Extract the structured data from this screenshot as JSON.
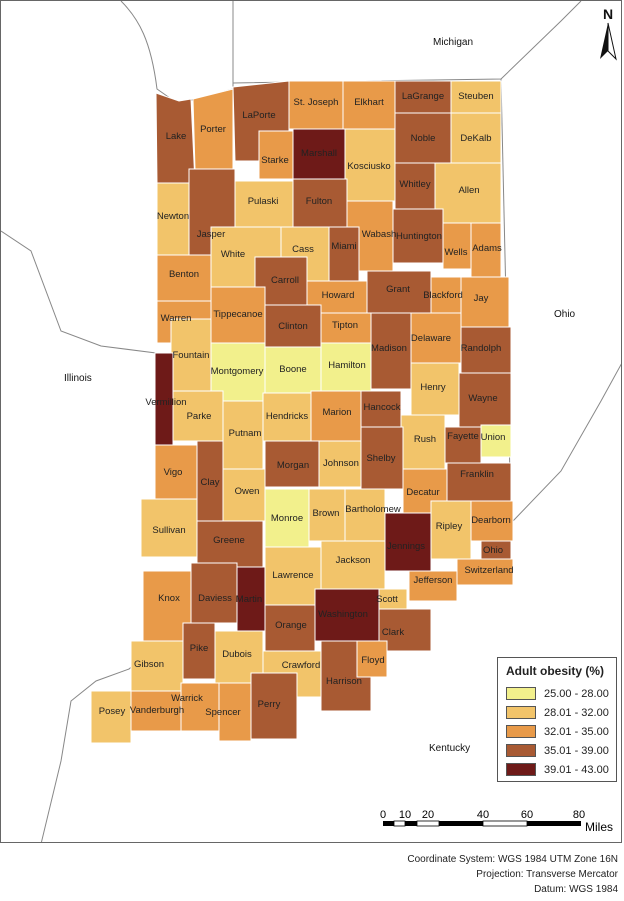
{
  "legend": {
    "title": "Adult obesity (%)",
    "classes": [
      {
        "label": "25.00 - 28.00",
        "color": "#f2f08c"
      },
      {
        "label": "28.01 - 32.00",
        "color": "#f2c46a"
      },
      {
        "label": "32.01 - 35.00",
        "color": "#e89a49"
      },
      {
        "label": "35.01 - 39.00",
        "color": "#a85a33"
      },
      {
        "label": "39.01 - 43.00",
        "color": "#6e1a18"
      }
    ]
  },
  "regions": {
    "michigan": "Michigan",
    "ohio": "Ohio",
    "illinois": "Illinois",
    "kentucky": "Kentucky"
  },
  "north_label": "N",
  "scale": {
    "ticks": [
      "0",
      "10",
      "20",
      "40",
      "60",
      "80"
    ],
    "unit": "Miles"
  },
  "credits": {
    "coordinate_system": "Coordinate System: WGS 1984 UTM Zone 16N",
    "projection": "Projection: Transverse Mercator",
    "datum": "Datum: WGS 1984"
  },
  "counties": [
    {
      "name": "Lake",
      "class": 3
    },
    {
      "name": "Porter",
      "class": 2
    },
    {
      "name": "LaPorte",
      "class": 3
    },
    {
      "name": "St. Joseph",
      "class": 2
    },
    {
      "name": "Elkhart",
      "class": 2
    },
    {
      "name": "LaGrange",
      "class": 3
    },
    {
      "name": "Steuben",
      "class": 1
    },
    {
      "name": "Noble",
      "class": 3
    },
    {
      "name": "DeKalb",
      "class": 1
    },
    {
      "name": "Starke",
      "class": 2
    },
    {
      "name": "Marshall",
      "class": 4
    },
    {
      "name": "Kosciusko",
      "class": 1
    },
    {
      "name": "Whitley",
      "class": 3
    },
    {
      "name": "Allen",
      "class": 1
    },
    {
      "name": "Newton",
      "class": 1
    },
    {
      "name": "Jasper",
      "class": 3
    },
    {
      "name": "Pulaski",
      "class": 1
    },
    {
      "name": "Fulton",
      "class": 3
    },
    {
      "name": "Huntington",
      "class": 3
    },
    {
      "name": "Wabash",
      "class": 2
    },
    {
      "name": "Miami",
      "class": 3
    },
    {
      "name": "Cass",
      "class": 1
    },
    {
      "name": "White",
      "class": 1
    },
    {
      "name": "Wells",
      "class": 2
    },
    {
      "name": "Adams",
      "class": 2
    },
    {
      "name": "Benton",
      "class": 2
    },
    {
      "name": "Carroll",
      "class": 3
    },
    {
      "name": "Howard",
      "class": 2
    },
    {
      "name": "Grant",
      "class": 3
    },
    {
      "name": "Blackford",
      "class": 2
    },
    {
      "name": "Jay",
      "class": 2
    },
    {
      "name": "Warren",
      "class": 2
    },
    {
      "name": "Tippecanoe",
      "class": 2
    },
    {
      "name": "Clinton",
      "class": 3
    },
    {
      "name": "Tipton",
      "class": 2
    },
    {
      "name": "Madison",
      "class": 3
    },
    {
      "name": "Delaware",
      "class": 2
    },
    {
      "name": "Randolph",
      "class": 3
    },
    {
      "name": "Fountain",
      "class": 1
    },
    {
      "name": "Montgomery",
      "class": 0
    },
    {
      "name": "Boone",
      "class": 0
    },
    {
      "name": "Hamilton",
      "class": 0
    },
    {
      "name": "Henry",
      "class": 1
    },
    {
      "name": "Wayne",
      "class": 3
    },
    {
      "name": "Vermillion",
      "class": 4
    },
    {
      "name": "Parke",
      "class": 1
    },
    {
      "name": "Putnam",
      "class": 1
    },
    {
      "name": "Hendricks",
      "class": 1
    },
    {
      "name": "Marion",
      "class": 2
    },
    {
      "name": "Hancock",
      "class": 3
    },
    {
      "name": "Rush",
      "class": 1
    },
    {
      "name": "Fayette",
      "class": 3
    },
    {
      "name": "Union",
      "class": 0
    },
    {
      "name": "Vigo",
      "class": 2
    },
    {
      "name": "Clay",
      "class": 3
    },
    {
      "name": "Owen",
      "class": 1
    },
    {
      "name": "Morgan",
      "class": 3
    },
    {
      "name": "Johnson",
      "class": 1
    },
    {
      "name": "Shelby",
      "class": 3
    },
    {
      "name": "Decatur",
      "class": 2
    },
    {
      "name": "Franklin",
      "class": 3
    },
    {
      "name": "Sullivan",
      "class": 1
    },
    {
      "name": "Greene",
      "class": 3
    },
    {
      "name": "Monroe",
      "class": 0
    },
    {
      "name": "Brown",
      "class": 1
    },
    {
      "name": "Bartholomew",
      "class": 1
    },
    {
      "name": "Jennings",
      "class": 4
    },
    {
      "name": "Ripley",
      "class": 1
    },
    {
      "name": "Dearborn",
      "class": 2
    },
    {
      "name": "Ohio",
      "class": 3
    },
    {
      "name": "Knox",
      "class": 2
    },
    {
      "name": "Daviess",
      "class": 3
    },
    {
      "name": "Martin",
      "class": 4
    },
    {
      "name": "Lawrence",
      "class": 1
    },
    {
      "name": "Jackson",
      "class": 1
    },
    {
      "name": "Jefferson",
      "class": 2
    },
    {
      "name": "Switzerland",
      "class": 2
    },
    {
      "name": "Scott",
      "class": 1
    },
    {
      "name": "Washington",
      "class": 4
    },
    {
      "name": "Orange",
      "class": 3
    },
    {
      "name": "Clark",
      "class": 3
    },
    {
      "name": "Gibson",
      "class": 1
    },
    {
      "name": "Pike",
      "class": 3
    },
    {
      "name": "Dubois",
      "class": 1
    },
    {
      "name": "Crawford",
      "class": 1
    },
    {
      "name": "Harrison",
      "class": 3
    },
    {
      "name": "Floyd",
      "class": 2
    },
    {
      "name": "Posey",
      "class": 1
    },
    {
      "name": "Vanderburgh",
      "class": 2
    },
    {
      "name": "Warrick",
      "class": 2
    },
    {
      "name": "Spencer",
      "class": 2
    },
    {
      "name": "Perry",
      "class": 3
    }
  ]
}
